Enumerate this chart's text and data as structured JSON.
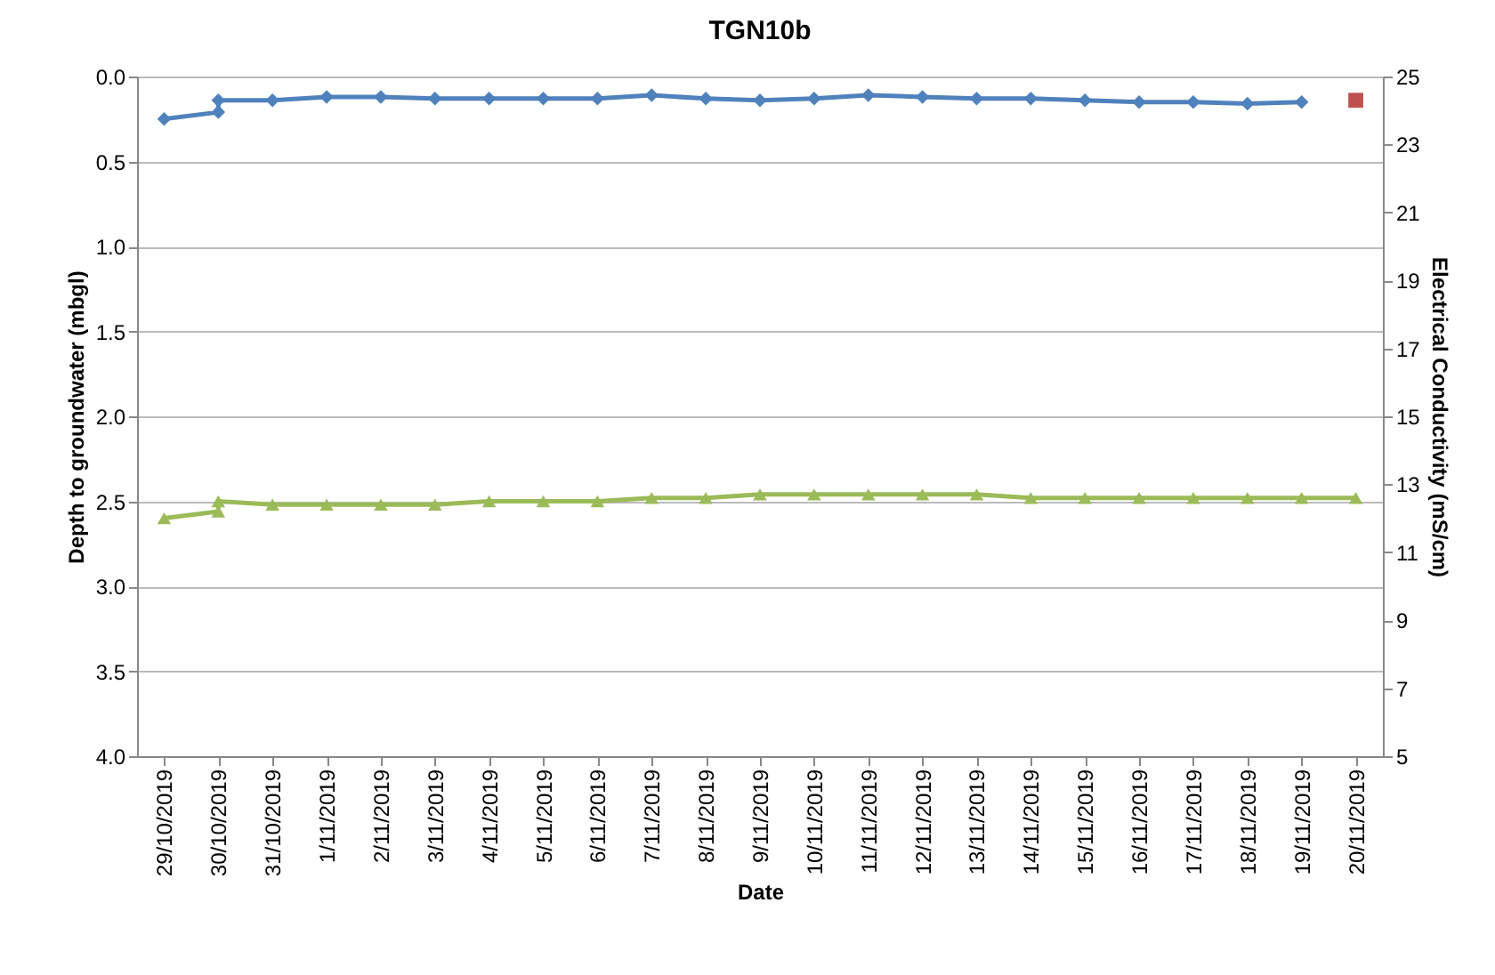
{
  "chart_data": {
    "type": "line",
    "title": "TGN10b",
    "xlabel": "Date",
    "ylabel": "Depth to groundwater (mbgl)",
    "y2label": "Electrical Conductivity (mS/cm)",
    "xlim": [
      "2019-10-28T12:00",
      "2019-11-20T12:00"
    ],
    "xticks": [
      {
        "value": "2019-10-29",
        "label": "29/10/2019"
      },
      {
        "value": "2019-10-30",
        "label": "30/10/2019"
      },
      {
        "value": "2019-10-31",
        "label": "31/10/2019"
      },
      {
        "value": "2019-11-01",
        "label": "1/11/2019"
      },
      {
        "value": "2019-11-02",
        "label": "2/11/2019"
      },
      {
        "value": "2019-11-03",
        "label": "3/11/2019"
      },
      {
        "value": "2019-11-04",
        "label": "4/11/2019"
      },
      {
        "value": "2019-11-05",
        "label": "5/11/2019"
      },
      {
        "value": "2019-11-06",
        "label": "6/11/2019"
      },
      {
        "value": "2019-11-07",
        "label": "7/11/2019"
      },
      {
        "value": "2019-11-08",
        "label": "8/11/2019"
      },
      {
        "value": "2019-11-09",
        "label": "9/11/2019"
      },
      {
        "value": "2019-11-10",
        "label": "10/11/2019"
      },
      {
        "value": "2019-11-11",
        "label": "11/11/2019"
      },
      {
        "value": "2019-11-12",
        "label": "12/11/2019"
      },
      {
        "value": "2019-11-13",
        "label": "13/11/2019"
      },
      {
        "value": "2019-11-14",
        "label": "14/11/2019"
      },
      {
        "value": "2019-11-15",
        "label": "15/11/2019"
      },
      {
        "value": "2019-11-16",
        "label": "16/11/2019"
      },
      {
        "value": "2019-11-17",
        "label": "17/11/2019"
      },
      {
        "value": "2019-11-18",
        "label": "18/11/2019"
      },
      {
        "value": "2019-11-19",
        "label": "19/11/2019"
      },
      {
        "value": "2019-11-20",
        "label": "20/11/2019"
      }
    ],
    "ylim": [
      4,
      0
    ],
    "yticks": [
      {
        "value": 0,
        "label": "0.0"
      },
      {
        "value": 0.5,
        "label": "0.5"
      },
      {
        "value": 1,
        "label": "1.0"
      },
      {
        "value": 1.5,
        "label": "1.5"
      },
      {
        "value": 2,
        "label": "2.0"
      },
      {
        "value": 2.5,
        "label": "2.5"
      },
      {
        "value": 3,
        "label": "3.0"
      },
      {
        "value": 3.5,
        "label": "3.5"
      },
      {
        "value": 4,
        "label": "4.0"
      }
    ],
    "y2lim": [
      5,
      25
    ],
    "y2ticks": [
      5,
      7,
      9,
      11,
      13,
      15,
      17,
      19,
      21,
      23,
      25
    ],
    "grid": "y",
    "line_style": "solid",
    "series": [
      {
        "color": "#4f81bd",
        "marker": "diamond",
        "x": [
          "2019-10-29",
          "2019-10-30",
          "2019-10-30",
          "2019-10-31",
          "2019-11-01",
          "2019-11-02",
          "2019-11-03",
          "2019-11-04",
          "2019-11-05",
          "2019-11-06",
          "2019-11-07",
          "2019-11-08",
          "2019-11-09",
          "2019-11-10",
          "2019-11-11",
          "2019-11-12",
          "2019-11-13",
          "2019-11-14",
          "2019-11-15",
          "2019-11-16",
          "2019-11-17",
          "2019-11-18",
          "2019-11-19"
        ],
        "values": [
          0.25,
          0.21,
          0.14,
          0.14,
          0.12,
          0.12,
          0.13,
          0.13,
          0.13,
          0.13,
          0.11,
          0.13,
          0.14,
          0.13,
          0.11,
          0.12,
          0.13,
          0.13,
          0.14,
          0.15,
          0.15,
          0.16,
          0.15
        ]
      },
      {
        "axis": "y2",
        "color": "#9bbb59",
        "marker": "triangle",
        "x": [
          "2019-10-29",
          "2019-10-30",
          "2019-10-30",
          "2019-10-31",
          "2019-11-01",
          "2019-11-02",
          "2019-11-03",
          "2019-11-04",
          "2019-11-05",
          "2019-11-06",
          "2019-11-07",
          "2019-11-08",
          "2019-11-09",
          "2019-11-10",
          "2019-11-11",
          "2019-11-12",
          "2019-11-13",
          "2019-11-14",
          "2019-11-15",
          "2019-11-16",
          "2019-11-17",
          "2019-11-18",
          "2019-11-19",
          "2019-11-20"
        ],
        "values": [
          12.0,
          12.2,
          12.5,
          12.4,
          12.4,
          12.4,
          12.4,
          12.5,
          12.5,
          12.5,
          12.6,
          12.6,
          12.7,
          12.7,
          12.7,
          12.7,
          12.7,
          12.6,
          12.6,
          12.6,
          12.6,
          12.6,
          12.6,
          12.6
        ]
      },
      {
        "type": "scatter",
        "color": "#c0504d",
        "marker": "square",
        "x": [
          "2019-11-20"
        ],
        "values": [
          0.14
        ]
      }
    ]
  }
}
